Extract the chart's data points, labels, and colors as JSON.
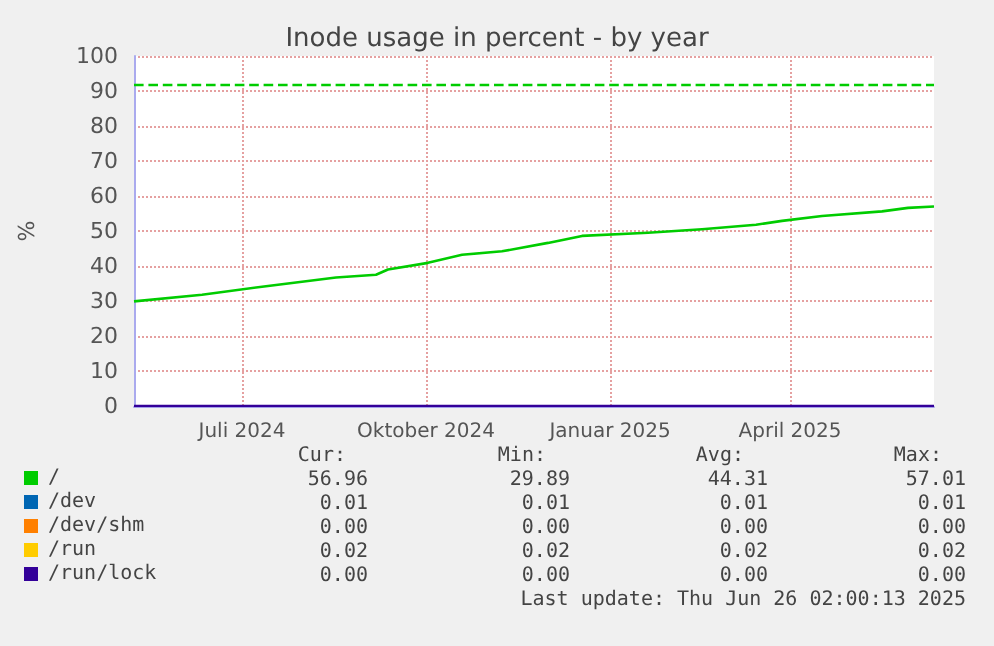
{
  "chart_data": {
    "type": "line",
    "title": "Inode usage in percent - by year",
    "ylabel": "%",
    "x": [
      "2024-05-22",
      "2024-06-25",
      "2024-07-28",
      "2024-08-31",
      "2024-09-20",
      "2024-09-26",
      "2024-10-16",
      "2024-11-02",
      "2024-11-22",
      "2024-12-15",
      "2025-01-01",
      "2025-02-03",
      "2025-03-02",
      "2025-03-29",
      "2025-04-11",
      "2025-05-01",
      "2025-05-31",
      "2025-06-13",
      "2025-06-26"
    ],
    "series": [
      {
        "name": "/",
        "color": "#00cc00",
        "values": [
          29.9,
          31.8,
          34.3,
          36.7,
          37.5,
          39.0,
          40.9,
          43.2,
          44.2,
          46.6,
          48.6,
          49.5,
          50.5,
          51.8,
          52.9,
          54.3,
          55.6,
          56.6,
          57.0
        ]
      },
      {
        "name": "/dev",
        "color": "#0066b3",
        "values": [
          null,
          null,
          null,
          null,
          null,
          null,
          null,
          null,
          null,
          null,
          null,
          null,
          null,
          null,
          null,
          null,
          null,
          null,
          null
        ]
      },
      {
        "name": "/dev/shm",
        "color": "#ff8000",
        "values": [
          null,
          null,
          null,
          null,
          null,
          null,
          null,
          null,
          null,
          null,
          null,
          null,
          null,
          null,
          null,
          null,
          null,
          null,
          null
        ]
      },
      {
        "name": "/run",
        "color": "#ffcc00",
        "values": [
          null,
          null,
          null,
          null,
          null,
          null,
          null,
          null,
          null,
          null,
          null,
          null,
          null,
          null,
          null,
          null,
          null,
          null,
          null
        ]
      },
      {
        "name": "/run/lock",
        "color": "#330099",
        "x": [
          "2024-05-22",
          "2025-06-26"
        ],
        "values": [
          0,
          0
        ]
      }
    ],
    "xlim": [
      "2024-05-22",
      "2025-06-26"
    ],
    "xticks": [
      {
        "value": "2024-07-15",
        "label": "Juli 2024"
      },
      {
        "value": "2024-10-15",
        "label": "Oktober 2024"
      },
      {
        "value": "2025-01-15",
        "label": "Januar 2025"
      },
      {
        "value": "2025-04-15",
        "label": "April 2025"
      }
    ],
    "ylim": [
      0,
      100
    ],
    "yticks": [
      0,
      10,
      20,
      30,
      40,
      50,
      60,
      70,
      80,
      90,
      100
    ],
    "ref_lines": [
      {
        "axis": "y",
        "value": 92,
        "label": null,
        "color": "#00cc00",
        "line_style": "dashed"
      }
    ],
    "grid": true,
    "legend": "bottom",
    "marker": "none",
    "line_style": "solid",
    "annotations": [
      "Cur:",
      "Min:",
      "Avg:",
      "Max:",
      "56.96",
      "29.89",
      "44.31",
      "57.01",
      "0.01",
      "0.01",
      "0.01",
      "0.01",
      "0.00",
      "0.00",
      "0.00",
      "0.00",
      "0.02",
      "0.02",
      "0.02",
      "0.02",
      "0.00",
      "0.00",
      "0.00",
      "0.00",
      "Last update: Thu Jun 26 02:00:13 2025"
    ]
  }
}
